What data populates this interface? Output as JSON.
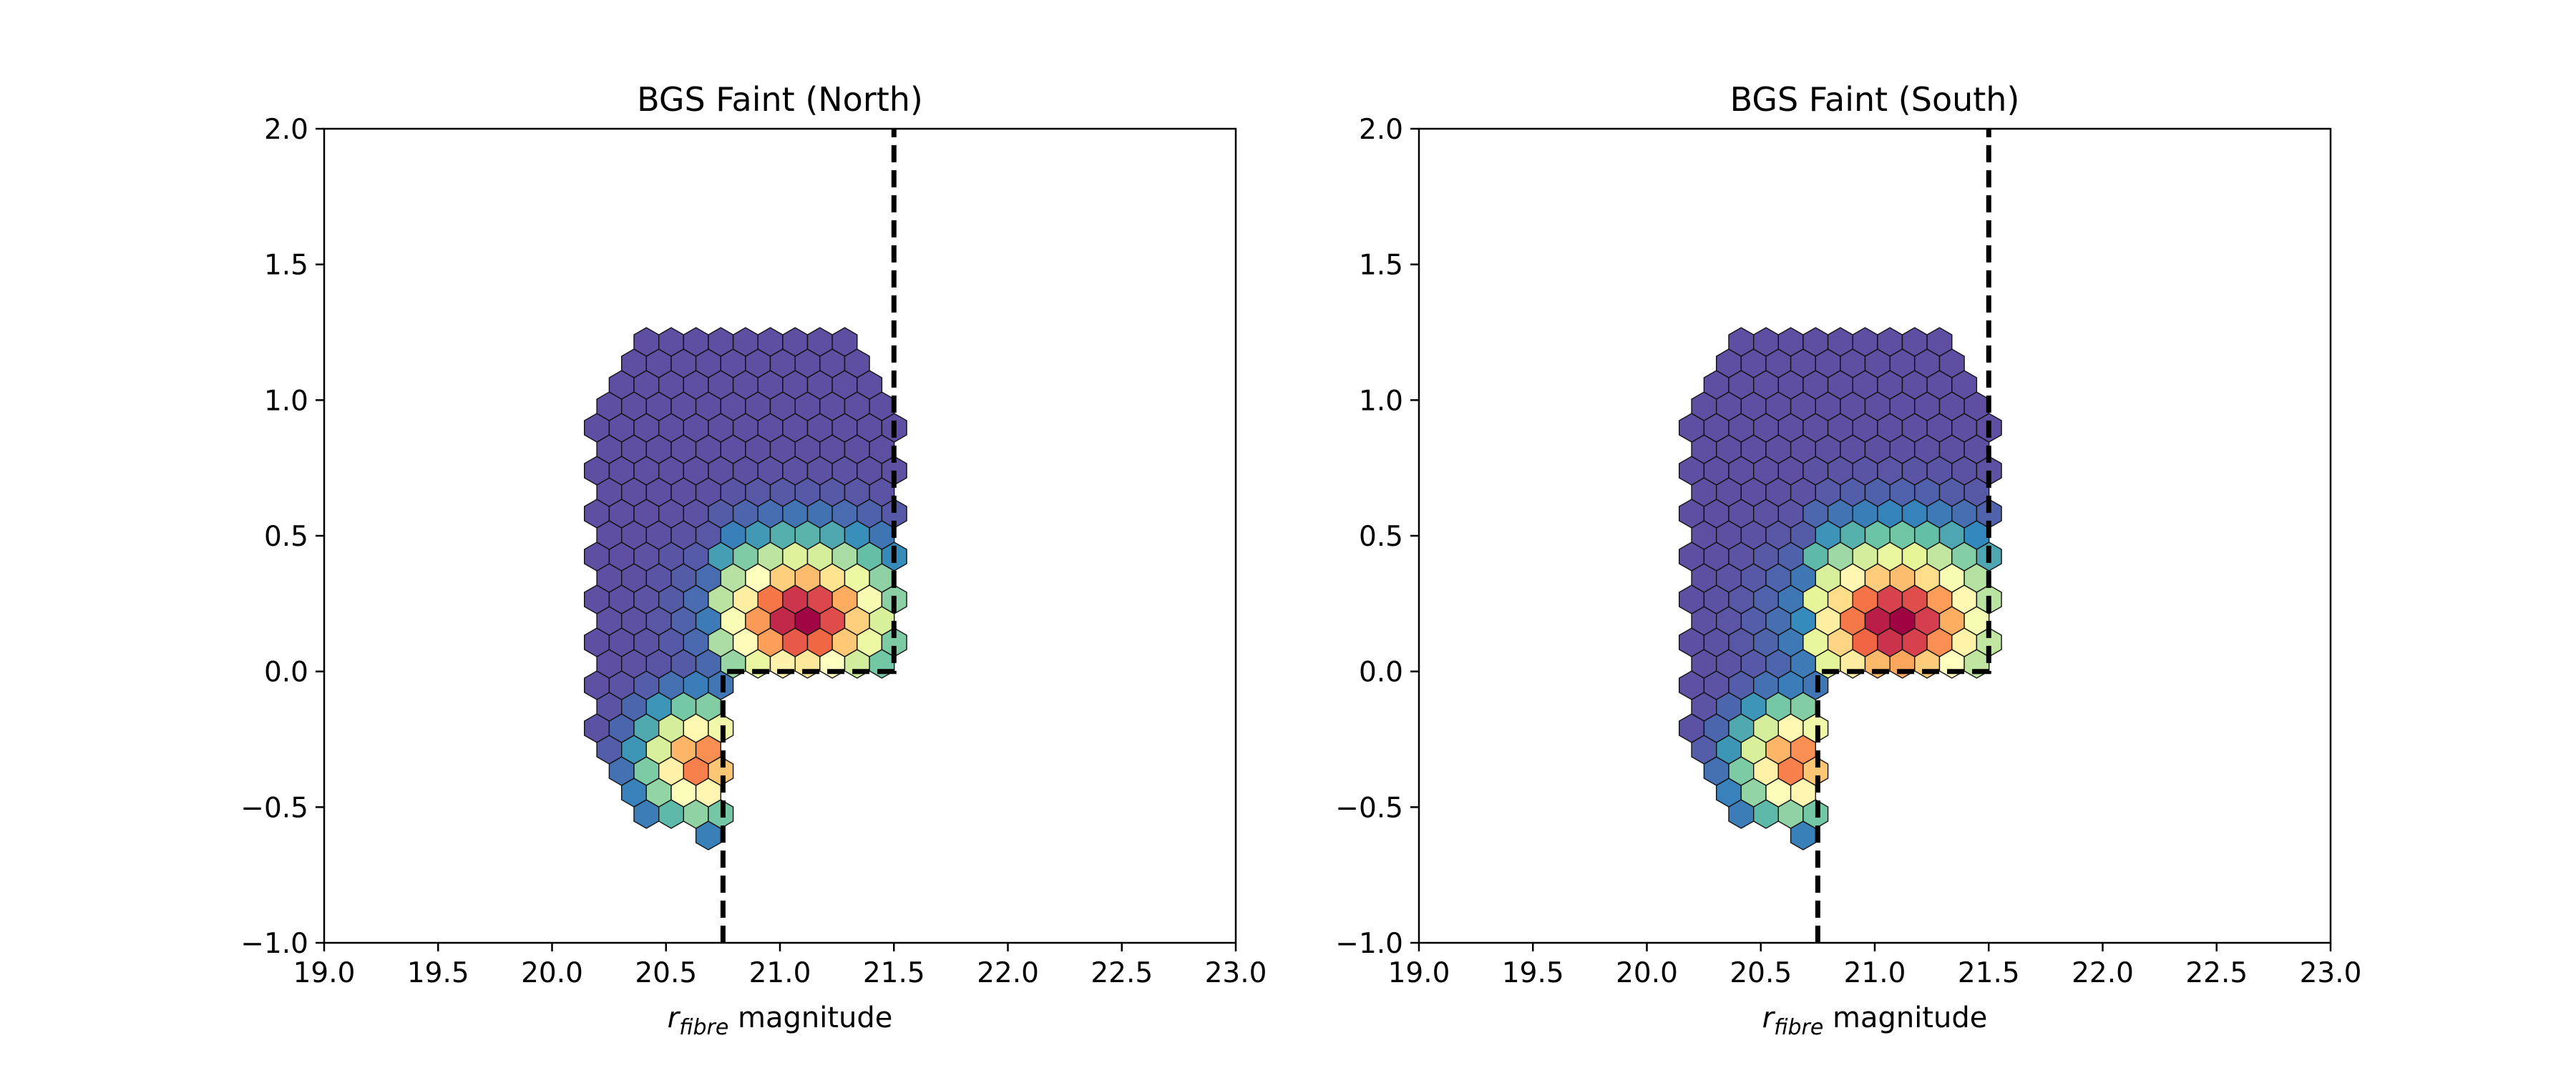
{
  "chart_data": [
    {
      "type": "hexbin",
      "title": "BGS Faint (North)",
      "xlabel_main": "r",
      "xlabel_sub": "fibre",
      "xlabel_rest": " magnitude",
      "ylabel": "",
      "xlim": [
        19.0,
        23.0
      ],
      "ylim": [
        -1.0,
        2.0
      ],
      "xticks": [
        "19.0",
        "19.5",
        "20.0",
        "20.5",
        "21.0",
        "21.5",
        "22.0",
        "22.5",
        "23.0"
      ],
      "yticks": [
        "2.0",
        "1.5",
        "1.0",
        "0.5",
        "0.0",
        "−0.5",
        "−1.0"
      ],
      "grid": false,
      "colormap": "Spectral_r",
      "cut_boundary": [
        [
          20.75,
          -1.0
        ],
        [
          20.75,
          0.0
        ],
        [
          21.5,
          0.0
        ],
        [
          21.5,
          2.0
        ]
      ],
      "density": {
        "x_range": [
          20.0,
          21.5
        ],
        "main_blob": {
          "x": 21.1,
          "y": 0.2,
          "sx": 0.23,
          "sy": 0.15
        },
        "secondary_blob": {
          "x": 20.65,
          "y": -0.33,
          "sx": 0.14,
          "sy": 0.12
        },
        "envelope_y": [
          -0.8,
          1.3
        ]
      }
    },
    {
      "type": "hexbin",
      "title": "BGS Faint (South)",
      "xlabel_main": "r",
      "xlabel_sub": "fibre",
      "xlabel_rest": " magnitude",
      "ylabel": "",
      "xlim": [
        19.0,
        23.0
      ],
      "ylim": [
        -1.0,
        2.0
      ],
      "xticks": [
        "19.0",
        "19.5",
        "20.0",
        "20.5",
        "21.0",
        "21.5",
        "22.0",
        "22.5",
        "23.0"
      ],
      "yticks": [
        "2.0",
        "1.5",
        "1.0",
        "0.5",
        "0.0",
        "−0.5",
        "−1.0"
      ],
      "grid": false,
      "colormap": "Spectral_r",
      "cut_boundary": [
        [
          20.75,
          -1.0
        ],
        [
          20.75,
          0.0
        ],
        [
          21.5,
          0.0
        ],
        [
          21.5,
          2.0
        ]
      ],
      "density": {
        "x_range": [
          19.8,
          21.5
        ],
        "main_blob": {
          "x": 21.1,
          "y": 0.18,
          "sx": 0.26,
          "sy": 0.17
        },
        "secondary_blob": {
          "x": 20.65,
          "y": -0.33,
          "sx": 0.14,
          "sy": 0.12
        },
        "envelope_y": [
          -1.0,
          1.6
        ]
      }
    }
  ]
}
